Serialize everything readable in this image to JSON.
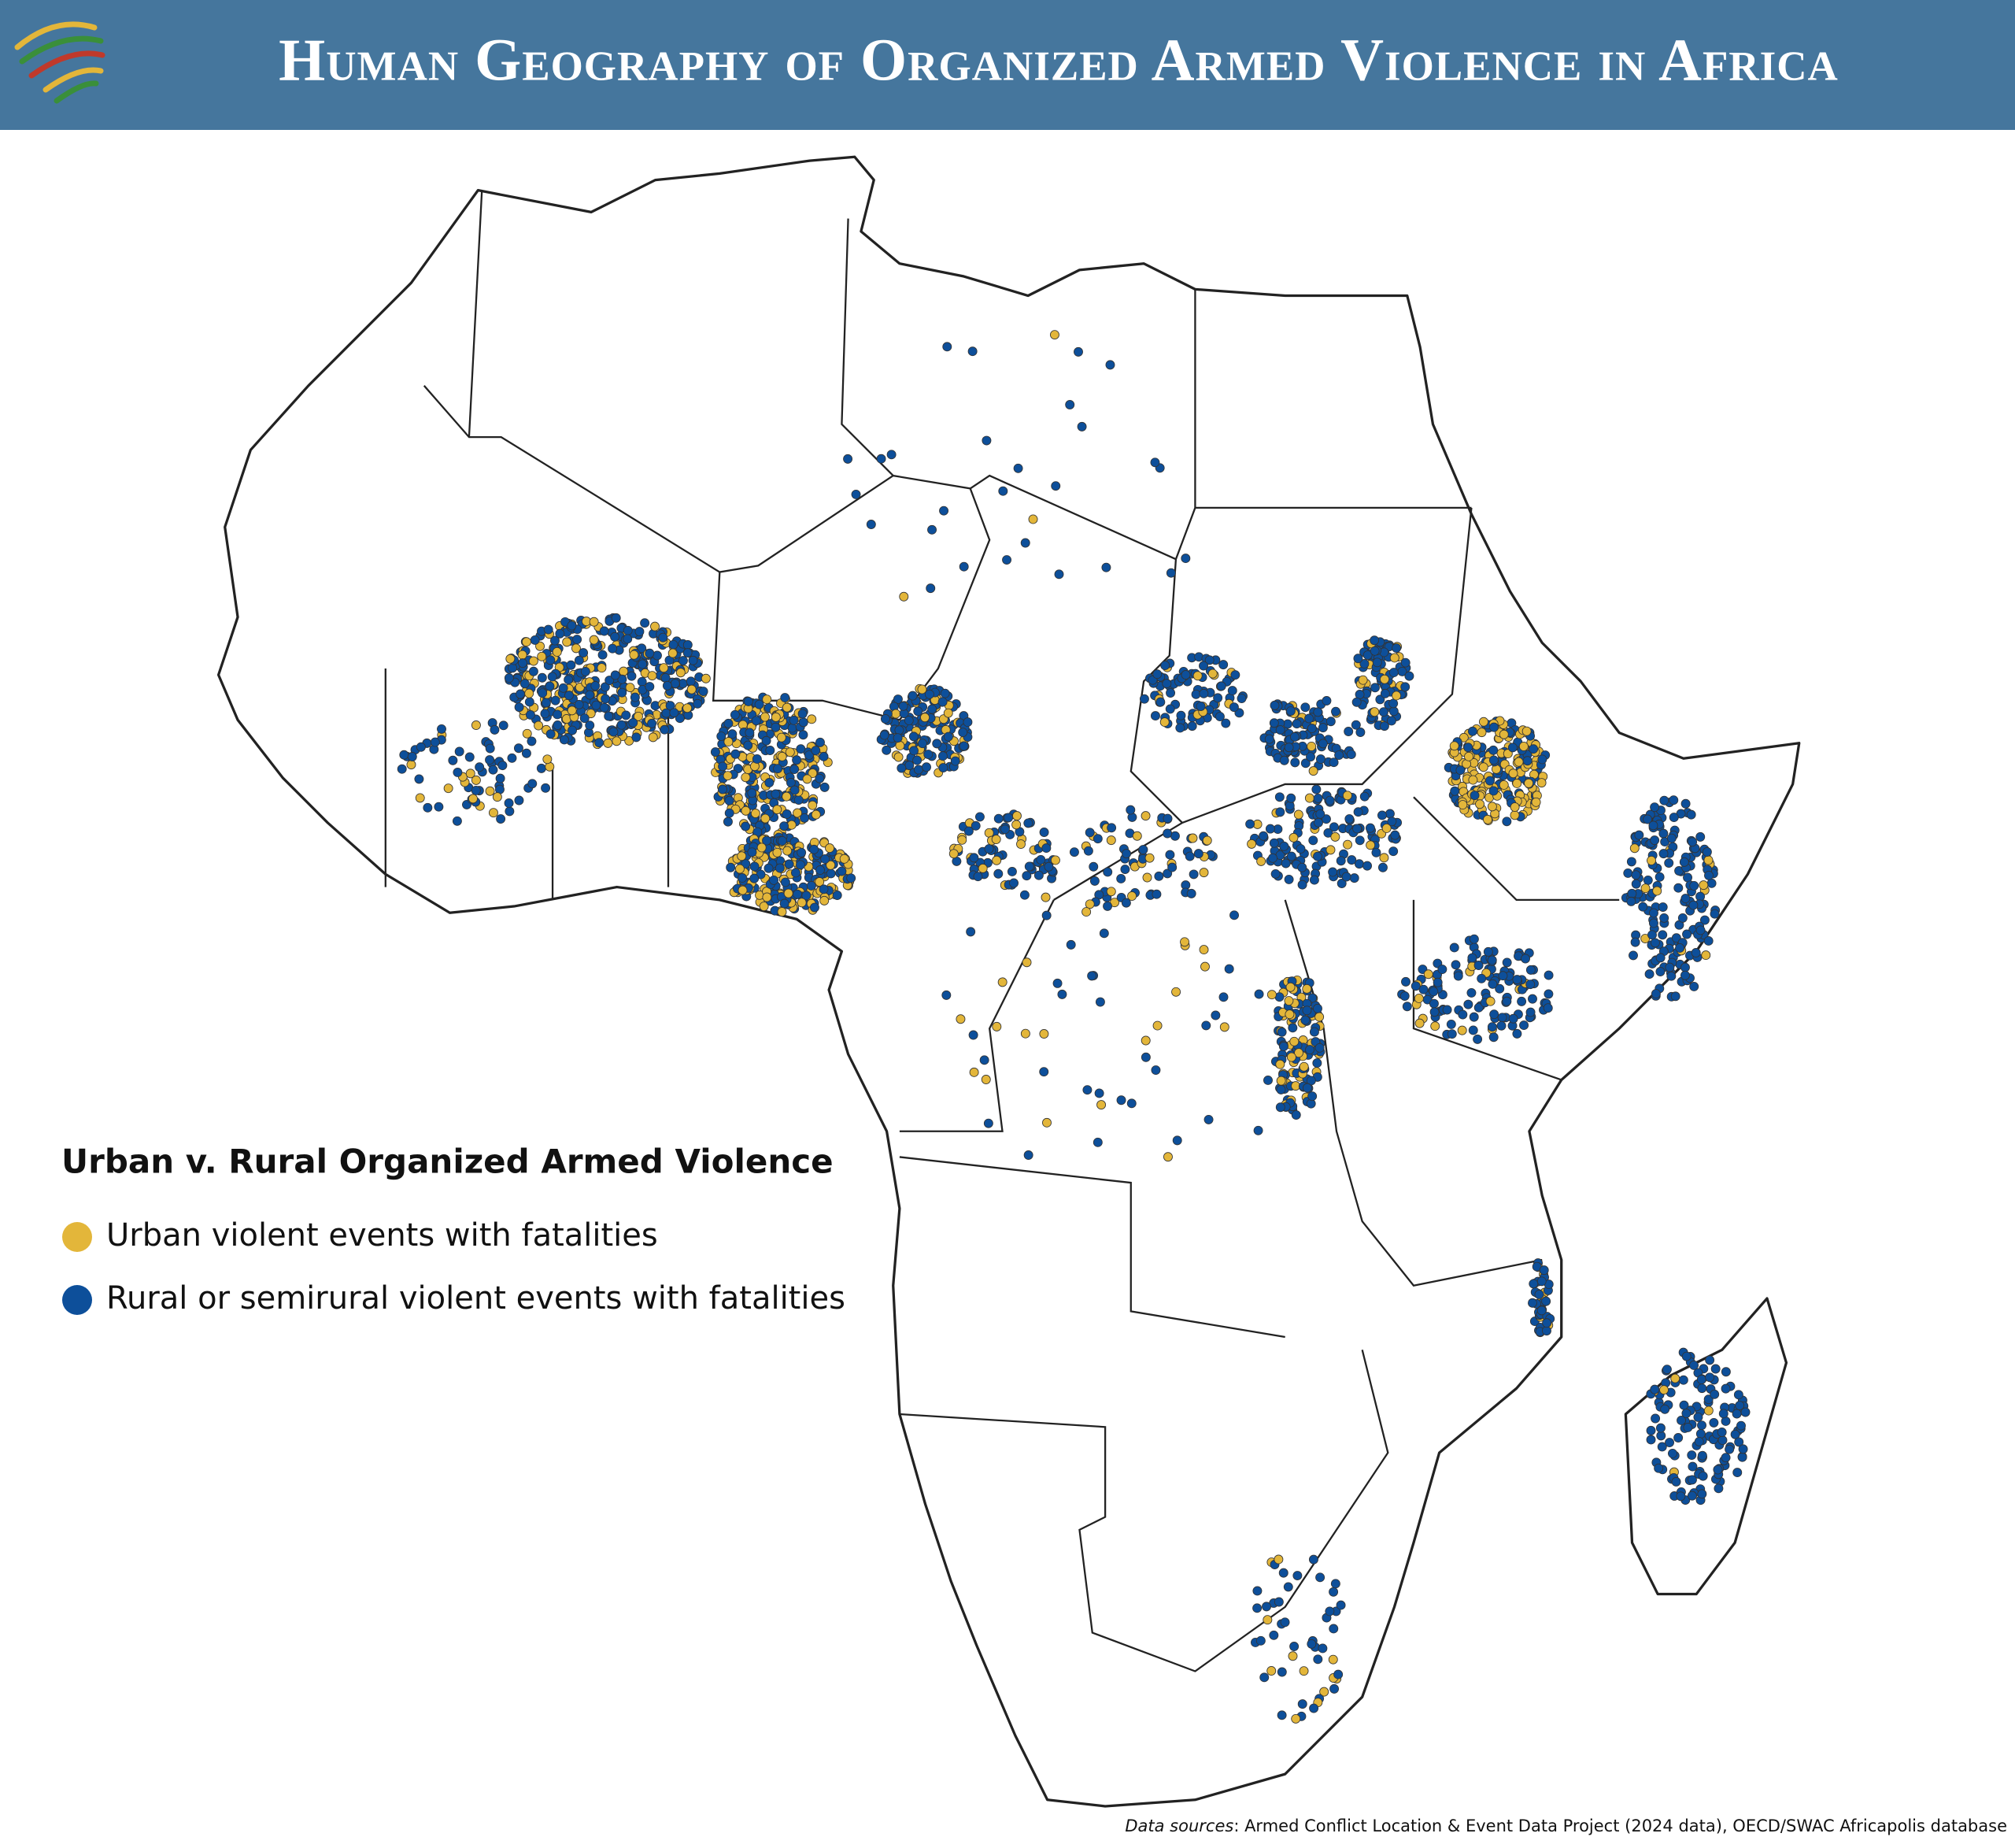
{
  "header": {
    "title": "Human Geography of Organized Armed Violence in Africa"
  },
  "legend": {
    "title": "Urban v. Rural Organized Armed Violence",
    "items": [
      {
        "label": "Urban violent events with fatalities",
        "color": "#e3b63a"
      },
      {
        "label": "Rural or semirural violent events with fatalities",
        "color": "#0d4f9a"
      }
    ]
  },
  "source": {
    "label": "Data sources",
    "text": ": Armed Conflict Location & Event Data Project (2024 data), OECD/SWAC Africapolis database"
  }
}
